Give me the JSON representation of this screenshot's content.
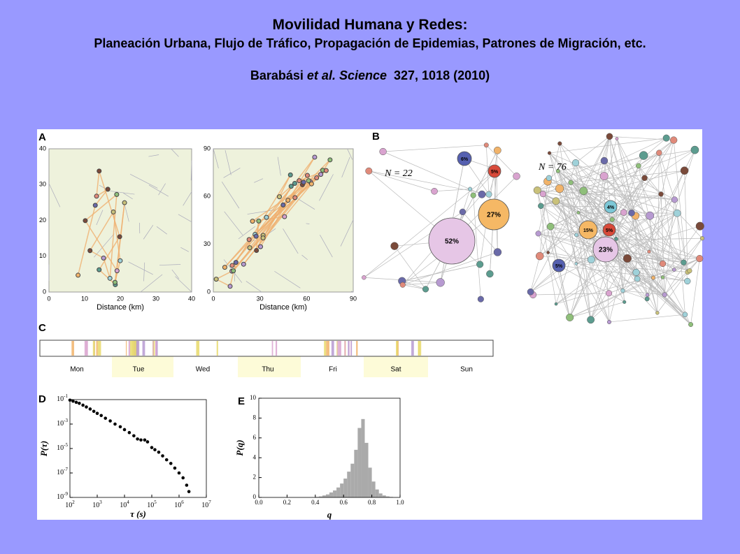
{
  "header": {
    "title": "Movilidad Humana y Redes:",
    "subtitle": "Planeación Urbana, Flujo de Tráfico, Propagación de Epidemias, Patrones de Migración, etc.",
    "citation": {
      "authors": "Barabási",
      "etal": "et al. Science",
      "ref": "327, 1018 (2010)"
    }
  },
  "figure": {
    "panel_a": {
      "label": "A",
      "maps": [
        {
          "xlim": [
            0,
            40
          ],
          "ylim": [
            0,
            40
          ],
          "xticks": [
            0,
            10,
            20,
            30,
            40
          ],
          "yticks": [
            0,
            10,
            20,
            30,
            40
          ],
          "xlabel": "Distance (km)"
        },
        {
          "xlim": [
            0,
            90
          ],
          "ylim": [
            0,
            90
          ],
          "xticks": [
            0,
            30,
            60,
            90
          ],
          "yticks": [
            0,
            30,
            60,
            90
          ],
          "xlabel": "Distance (km)"
        }
      ]
    },
    "panel_b": {
      "label": "B",
      "networks": [
        {
          "n_label": "N = 22",
          "shares": [
            "6%",
            "5%",
            "27%",
            "52%"
          ]
        },
        {
          "n_label": "N = 76",
          "shares": [
            "4%",
            "15%",
            "5%",
            "23%",
            "5%"
          ]
        }
      ]
    },
    "panel_c": {
      "label": "C",
      "days": [
        "Mon",
        "Tue",
        "Wed",
        "Thu",
        "Fri",
        "Sat",
        "Sun"
      ]
    },
    "panel_d": {
      "label": "D",
      "type": "scatter",
      "log": true,
      "x": [
        100,
        130,
        170,
        220,
        300,
        400,
        550,
        750,
        1000,
        1400,
        2000,
        3000,
        4500,
        7000,
        10000,
        15000,
        22000,
        30000,
        40000,
        55000,
        70000,
        100000,
        130000,
        180000,
        250000,
        350000,
        500000,
        700000,
        1000000,
        1400000,
        1900000,
        2300000
      ],
      "y": [
        0.09,
        0.075,
        0.06,
        0.05,
        0.035,
        0.025,
        0.017,
        0.011,
        0.0075,
        0.005,
        0.003,
        0.0018,
        0.001,
        0.0006,
        0.00035,
        0.0002,
        0.00011,
        6e-05,
        5e-05,
        5e-05,
        3.5e-05,
        1.2e-05,
        8e-06,
        5e-06,
        2.5e-06,
        1.2e-06,
        6e-07,
        2.5e-07,
        1e-07,
        4e-08,
        1e-08,
        3e-09
      ],
      "xlim": [
        100,
        10000000
      ],
      "ylim": [
        1e-09,
        0.1
      ],
      "xticks": [
        {
          "value": 100,
          "label": "10",
          "sup": "2"
        },
        {
          "value": 1000,
          "label": "10",
          "sup": "3"
        },
        {
          "value": 10000,
          "label": "10",
          "sup": "4"
        },
        {
          "value": 100000,
          "label": "10",
          "sup": "5"
        },
        {
          "value": 1000000,
          "label": "10",
          "sup": "6"
        },
        {
          "value": 10000000,
          "label": "10",
          "sup": "7"
        }
      ],
      "yticks": [
        {
          "value": 0.1,
          "label": "10",
          "sup": "-1"
        },
        {
          "value": 0.001,
          "label": "10",
          "sup": "-3"
        },
        {
          "value": 1e-05,
          "label": "10",
          "sup": "-5"
        },
        {
          "value": 1e-07,
          "label": "10",
          "sup": "-7"
        },
        {
          "value": 1e-09,
          "label": "10",
          "sup": "-9"
        }
      ],
      "xlabel": "τ (s)",
      "ylabel": "P(τ)"
    },
    "panel_e": {
      "label": "E",
      "type": "histogram",
      "bins": [
        0.4,
        0.425,
        0.45,
        0.475,
        0.5,
        0.525,
        0.55,
        0.575,
        0.6,
        0.625,
        0.65,
        0.675,
        0.7,
        0.725,
        0.75,
        0.775,
        0.8,
        0.825,
        0.85,
        0.875,
        0.9,
        0.925,
        0.95
      ],
      "counts": [
        0.05,
        0.1,
        0.2,
        0.3,
        0.5,
        0.7,
        1.0,
        1.4,
        1.9,
        2.6,
        3.4,
        4.8,
        7.0,
        7.9,
        5.5,
        3.0,
        1.6,
        0.8,
        0.4,
        0.2,
        0.1,
        0.05
      ],
      "xlim": [
        0,
        1
      ],
      "ylim": [
        0,
        10
      ],
      "xticks": [
        {
          "value": 0,
          "label": "0.0"
        },
        {
          "value": 0.2,
          "label": "0.2"
        },
        {
          "value": 0.4,
          "label": "0.4"
        },
        {
          "value": 0.6,
          "label": "0.6"
        },
        {
          "value": 0.8,
          "label": "0.8"
        },
        {
          "value": 1,
          "label": "1.0"
        }
      ],
      "yticks": [
        0,
        2,
        4,
        6,
        8,
        10
      ],
      "xlabel": "q",
      "ylabel": "P(q)"
    }
  }
}
